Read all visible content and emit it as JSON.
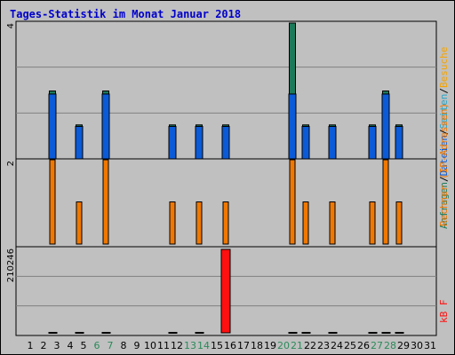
{
  "title": "Tages-Statistik im Monat Januar 2018",
  "colors": {
    "anfragen": "#1b7a5a",
    "dateien": "#0b5bd8",
    "seiten": "#27a6c8",
    "besuche": "#f5a400",
    "rechner": "#f07800",
    "kbf": "#ff1010",
    "weekend": "#2a8a5a",
    "frame_bg": "#c0c0c0",
    "title": "#0000cc"
  },
  "chart_data": [
    {
      "type": "bar",
      "panel": "top",
      "ytick_label": "4",
      "ylim": [
        0,
        4
      ],
      "categories": [
        "1",
        "2",
        "3",
        "4",
        "5",
        "6",
        "7",
        "8",
        "9",
        "10",
        "11",
        "12",
        "13",
        "14",
        "15",
        "16",
        "17",
        "18",
        "19",
        "20",
        "21",
        "22",
        "23",
        "24",
        "25",
        "26",
        "27",
        "28",
        "29",
        "30",
        "31"
      ],
      "weekend_days": [
        "6",
        "7",
        "13",
        "14",
        "20",
        "21",
        "27",
        "28"
      ],
      "series": [
        {
          "name": "Anfragen",
          "values": [
            0,
            2,
            0,
            1,
            0,
            2,
            0,
            0,
            0,
            0,
            1,
            0,
            1,
            0,
            1,
            0,
            0,
            0,
            0,
            4,
            1,
            0,
            1,
            0,
            0,
            1,
            2,
            1,
            0,
            0,
            0
          ]
        },
        {
          "name": "Dateien",
          "values": [
            0,
            2,
            0,
            1,
            0,
            2,
            0,
            0,
            0,
            0,
            1,
            0,
            1,
            0,
            1,
            0,
            0,
            0,
            0,
            2,
            1,
            0,
            1,
            0,
            0,
            1,
            2,
            1,
            0,
            0,
            0
          ]
        }
      ],
      "legend_parts": [
        "Anfragen",
        "/",
        "Dateien",
        "/",
        "Seiten",
        "/",
        "Besuche"
      ]
    },
    {
      "type": "bar",
      "panel": "middle",
      "ytick_label": "2",
      "ylim": [
        0,
        2
      ],
      "series": [
        {
          "name": "Rechner (IP-Adressen)",
          "values": [
            0,
            2,
            0,
            1,
            0,
            2,
            0,
            0,
            0,
            0,
            1,
            0,
            1,
            0,
            1,
            0,
            0,
            0,
            0,
            2,
            1,
            0,
            1,
            0,
            0,
            1,
            2,
            1,
            0,
            0,
            0
          ]
        }
      ],
      "legend_parts": [
        "Rechner (IP-Adressen)"
      ]
    },
    {
      "type": "bar",
      "panel": "bottom",
      "ytick_label": "210246",
      "ylim": [
        0,
        210246
      ],
      "series": [
        {
          "name": "kB F",
          "values": [
            0,
            0,
            0,
            0,
            0,
            0,
            0,
            0,
            0,
            0,
            0,
            0,
            0,
            0,
            210246,
            0,
            0,
            0,
            0,
            0,
            0,
            0,
            0,
            0,
            0,
            0,
            0,
            0,
            0,
            0,
            0
          ]
        }
      ],
      "marker_days": [
        "2",
        "4",
        "6",
        "11",
        "13",
        "20",
        "21",
        "23",
        "26",
        "27",
        "28"
      ],
      "legend_parts": [
        "kB F"
      ]
    }
  ]
}
